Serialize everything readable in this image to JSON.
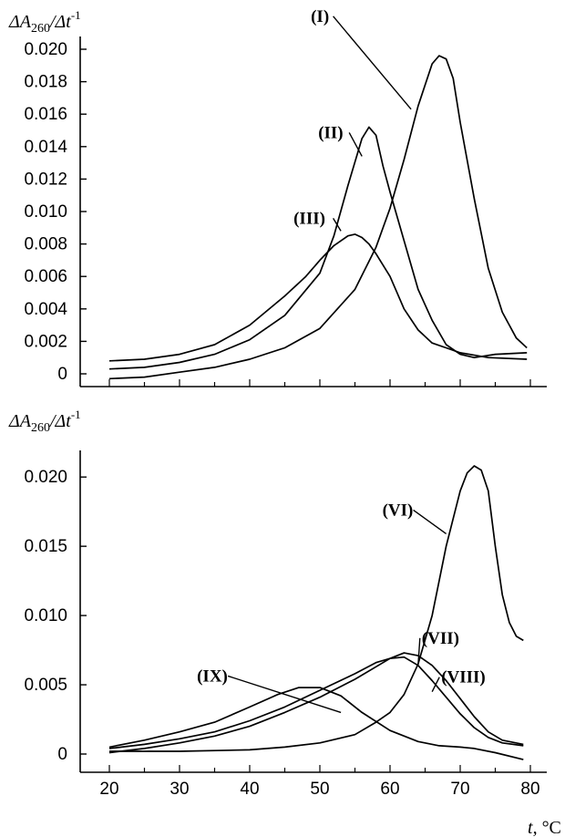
{
  "chart_data": [
    {
      "type": "line",
      "ylabel": {
        "pre": "ΔA",
        "sub": "260",
        "mid": "/Δt",
        "sup": "-1"
      },
      "xlim": [
        20,
        80
      ],
      "ylim": [
        0,
        0.02
      ],
      "yticks": [
        0,
        0.002,
        0.004,
        0.006,
        0.008,
        0.01,
        0.012,
        0.014,
        0.016,
        0.018,
        0.02
      ],
      "ytick_labels": [
        "0",
        "0.002",
        "0.004",
        "0.006",
        "0.008",
        "0.010",
        "0.012",
        "0.014",
        "0.016",
        "0.018",
        "0.020"
      ],
      "series": [
        {
          "name": "(I)",
          "label_at": [
            63,
            0.0163
          ],
          "x": [
            20,
            25,
            30,
            35,
            40,
            45,
            50,
            55,
            58,
            60,
            62,
            64,
            66,
            67,
            68,
            69,
            70,
            72,
            74,
            76,
            78,
            79.5
          ],
          "y": [
            -0.0003,
            -0.0002,
            0.0001,
            0.0004,
            0.0009,
            0.0016,
            0.0028,
            0.0052,
            0.0078,
            0.0102,
            0.0132,
            0.0165,
            0.0191,
            0.0196,
            0.0194,
            0.0182,
            0.0155,
            0.0108,
            0.0065,
            0.0038,
            0.0022,
            0.0016
          ]
        },
        {
          "name": "(II)",
          "label_at": [
            56,
            0.0134
          ],
          "x": [
            20,
            25,
            30,
            35,
            40,
            45,
            50,
            52,
            54,
            56,
            57,
            58,
            59,
            60,
            62,
            64,
            66,
            68,
            70,
            72,
            75,
            79.5
          ],
          "y": [
            0.0003,
            0.0004,
            0.0007,
            0.0012,
            0.0021,
            0.0036,
            0.0062,
            0.0085,
            0.0116,
            0.0145,
            0.0152,
            0.0147,
            0.0128,
            0.0112,
            0.0082,
            0.0052,
            0.0033,
            0.0018,
            0.0012,
            0.001,
            0.0012,
            0.0013
          ]
        },
        {
          "name": "(III)",
          "label_at": [
            53,
            0.0088
          ],
          "x": [
            20,
            25,
            30,
            35,
            40,
            45,
            48,
            50,
            52,
            54,
            55,
            56,
            57,
            58,
            60,
            62,
            64,
            66,
            68,
            70,
            74,
            79.5
          ],
          "y": [
            0.0008,
            0.0009,
            0.0012,
            0.0018,
            0.003,
            0.0048,
            0.006,
            0.007,
            0.0079,
            0.0085,
            0.0086,
            0.0084,
            0.008,
            0.0074,
            0.006,
            0.004,
            0.0027,
            0.0019,
            0.0016,
            0.0013,
            0.001,
            0.0009
          ]
        }
      ]
    },
    {
      "type": "line",
      "ylabel": {
        "pre": "ΔA",
        "sub": "260",
        "mid": "/Δt",
        "sup": "-1"
      },
      "xlabel": "t, °C",
      "xlim": [
        20,
        80
      ],
      "ylim": [
        0,
        0.021
      ],
      "xticks": [
        20,
        30,
        40,
        50,
        60,
        70,
        80
      ],
      "xtick_labels": [
        "20",
        "30",
        "40",
        "50",
        "60",
        "70",
        "80"
      ],
      "yticks": [
        0,
        0.005,
        0.01,
        0.015,
        0.02
      ],
      "ytick_labels": [
        "0",
        "0.005",
        "0.010",
        "0.015",
        "0.020"
      ],
      "series": [
        {
          "name": "(VI)",
          "label_at": [
            68,
            0.0159
          ],
          "x": [
            20,
            30,
            40,
            45,
            50,
            55,
            58,
            60,
            62,
            64,
            66,
            68,
            70,
            71,
            72,
            73,
            74,
            75,
            76,
            77,
            78,
            79
          ],
          "y": [
            0.0002,
            0.0002,
            0.0003,
            0.0005,
            0.0008,
            0.0014,
            0.0023,
            0.003,
            0.0043,
            0.0065,
            0.01,
            0.015,
            0.019,
            0.0203,
            0.0208,
            0.0205,
            0.019,
            0.015,
            0.0115,
            0.0095,
            0.0085,
            0.0082
          ]
        },
        {
          "name": "(VII)",
          "label_at": [
            64,
            0.0064
          ],
          "x": [
            20,
            25,
            30,
            35,
            40,
            45,
            50,
            55,
            58,
            60,
            62,
            64,
            66,
            68,
            70,
            72,
            74,
            76,
            79
          ],
          "y": [
            0.0004,
            0.0007,
            0.0011,
            0.0016,
            0.0024,
            0.0034,
            0.0046,
            0.0058,
            0.0066,
            0.0069,
            0.007,
            0.0064,
            0.0053,
            0.0041,
            0.0029,
            0.0019,
            0.0012,
            0.0008,
            0.0006
          ]
        },
        {
          "name": "(VIII)",
          "label_at": [
            66,
            0.0045
          ],
          "x": [
            20,
            25,
            30,
            35,
            40,
            45,
            50,
            55,
            58,
            60,
            62,
            64,
            66,
            68,
            70,
            72,
            74,
            76,
            79
          ],
          "y": [
            0.0001,
            0.0004,
            0.0008,
            0.0013,
            0.002,
            0.003,
            0.0041,
            0.0054,
            0.0063,
            0.0069,
            0.0073,
            0.0071,
            0.0064,
            0.0053,
            0.004,
            0.0027,
            0.0016,
            0.001,
            0.0007
          ]
        },
        {
          "name": "(IX)",
          "label_at": [
            53,
            0.003
          ],
          "x": [
            20,
            25,
            30,
            35,
            40,
            44,
            47,
            50,
            53,
            56,
            60,
            64,
            67,
            70,
            72,
            75,
            79
          ],
          "y": [
            0.0005,
            0.001,
            0.0016,
            0.0023,
            0.0034,
            0.0043,
            0.0048,
            0.0048,
            0.0042,
            0.003,
            0.0017,
            0.0009,
            0.0006,
            0.0005,
            0.0004,
            0.0001,
            -0.0004
          ]
        }
      ]
    }
  ],
  "series_label_texts": [
    "(I)",
    "(II)",
    "(III)",
    "(VI)",
    "(VII)",
    "(VIII)",
    "(IX)"
  ]
}
